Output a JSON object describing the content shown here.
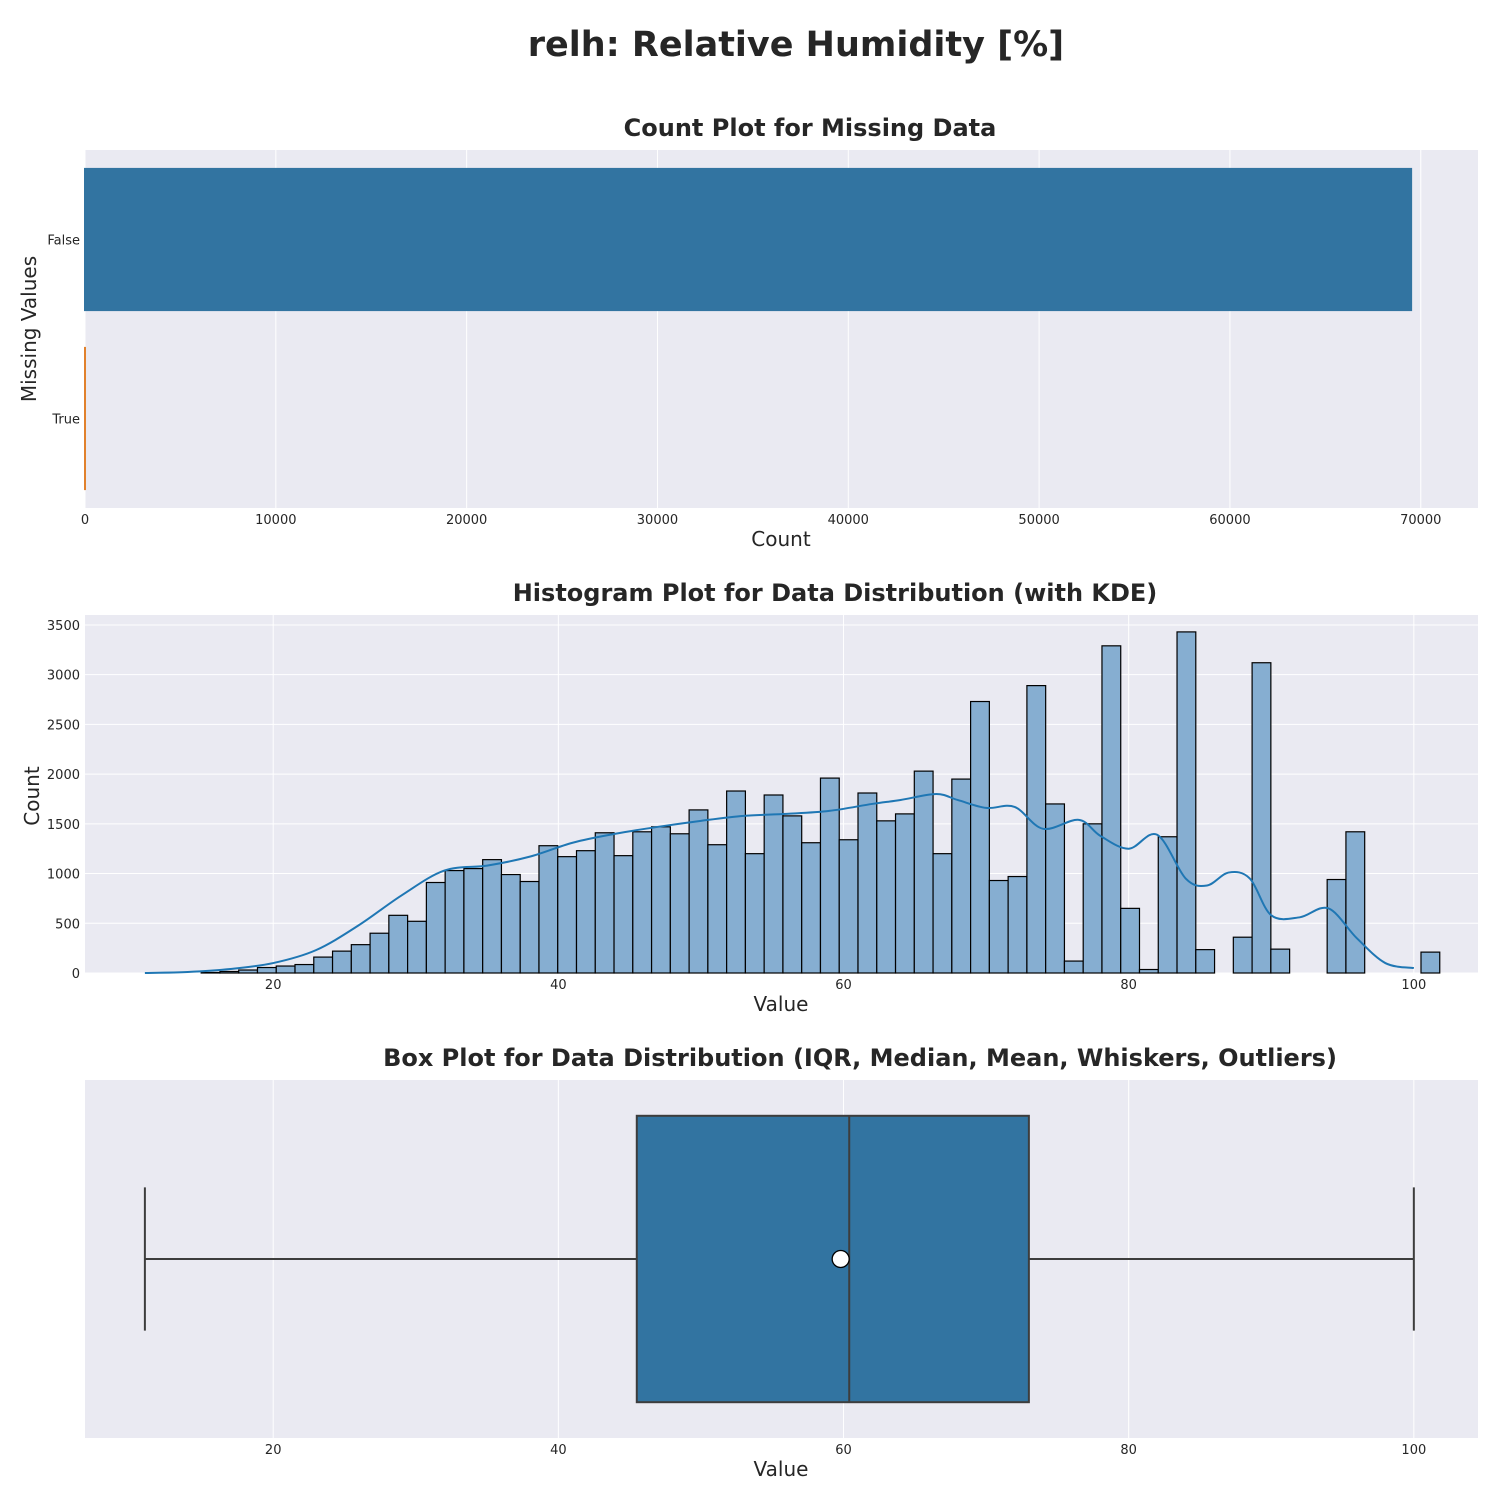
{
  "suptitle": "relh: Relative Humidity [%]",
  "colors": {
    "background": "#eaeaf2",
    "grid": "#ffffff",
    "bar_blue": "#3274a1",
    "bar_orange": "#e1812c",
    "hist_fill": "#86aed1",
    "kde_line": "#1f77b4",
    "box_fill": "#3274a1",
    "box_edge": "#3d3d3d"
  },
  "chart_data": [
    {
      "type": "bar",
      "orientation": "horizontal",
      "title": "Count Plot for Missing Data",
      "xlabel": "Count",
      "ylabel": "Missing Values",
      "categories": [
        "False",
        "True"
      ],
      "values": [
        69600,
        30
      ],
      "xlim": [
        0,
        73000
      ],
      "xticks": [
        0,
        10000,
        20000,
        30000,
        40000,
        50000,
        60000,
        70000
      ],
      "grid": true
    },
    {
      "type": "bar",
      "subtype": "histogram_with_kde",
      "title": "Histogram Plot for Data Distribution (with KDE)",
      "xlabel": "Value",
      "ylabel": "Count",
      "xlim": [
        6.8,
        104.5
      ],
      "ylim": [
        0,
        3600
      ],
      "xticks": [
        20,
        40,
        60,
        80,
        100
      ],
      "yticks": [
        0,
        500,
        1000,
        1500,
        2000,
        2500,
        3000,
        3500
      ],
      "bin_start": 11.0,
      "bin_width": 1.3162,
      "counts": [
        0,
        0,
        0,
        5,
        15,
        30,
        55,
        70,
        85,
        160,
        220,
        285,
        400,
        580,
        520,
        910,
        1030,
        1050,
        1140,
        990,
        920,
        1280,
        1170,
        1230,
        1410,
        1180,
        1420,
        1470,
        1400,
        1640,
        1290,
        1830,
        1200,
        1790,
        1580,
        1310,
        1960,
        1340,
        1810,
        1530,
        1600,
        2030,
        1200,
        1950,
        2730,
        930,
        970,
        2890,
        1700,
        120,
        1500,
        3290,
        650,
        35,
        1370,
        3430,
        235,
        0,
        360,
        3120,
        240,
        0,
        0,
        940,
        1420,
        0,
        0,
        0,
        210
      ],
      "kde": {
        "x": [
          11,
          14,
          17,
          20,
          23,
          26,
          29,
          32,
          35,
          38,
          41,
          44,
          47,
          50,
          53,
          56,
          59,
          62,
          64,
          66.5,
          68,
          70,
          72,
          74,
          76.5,
          78,
          80,
          82,
          84,
          85.5,
          87,
          88.5,
          90,
          92,
          94,
          96,
          98,
          100
        ],
        "y": [
          0,
          10,
          40,
          100,
          230,
          480,
          780,
          1030,
          1080,
          1170,
          1310,
          1400,
          1470,
          1530,
          1580,
          1600,
          1630,
          1700,
          1740,
          1800,
          1740,
          1660,
          1670,
          1450,
          1540,
          1380,
          1250,
          1390,
          950,
          880,
          1010,
          950,
          580,
          560,
          650,
          350,
          100,
          50
        ]
      },
      "grid": true
    },
    {
      "type": "box",
      "title": "Box Plot for Data Distribution (IQR, Median, Mean, Whiskers, Outliers)",
      "xlabel": "Value",
      "xlim": [
        6.8,
        104.5
      ],
      "xticks": [
        20,
        40,
        60,
        80,
        100
      ],
      "whisker_low": 11.0,
      "q1": 45.5,
      "median": 60.4,
      "q3": 73.0,
      "whisker_high": 100.0,
      "mean": 59.8,
      "grid": true
    }
  ]
}
